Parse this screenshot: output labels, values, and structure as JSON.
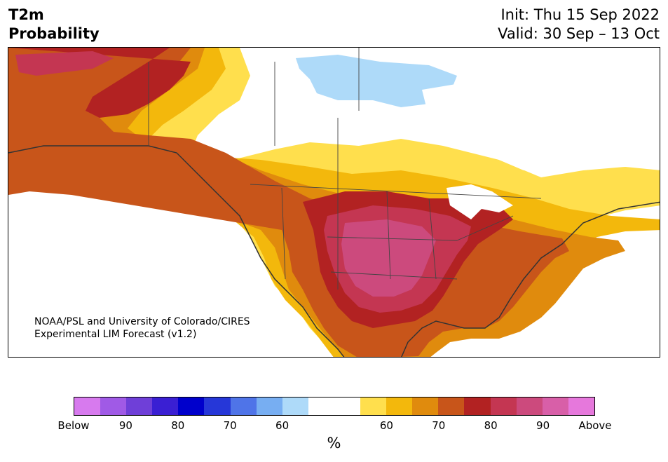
{
  "header": {
    "title_line1": "T2m",
    "title_line2": "Probability",
    "init": "Init: Thu 15 Sep 2022",
    "valid": "Valid: 30 Sep – 13 Oct"
  },
  "credit": {
    "line1": "NOAA/PSL and University of Colorado/CIRES",
    "line2": "Experimental LIM Forecast (v1.2)"
  },
  "legend": {
    "colors": [
      "#d77aee",
      "#a05ae6",
      "#6f3fd8",
      "#3a1fd3",
      "#0000cc",
      "#2637d8",
      "#4f74e8",
      "#77aef2",
      "#aedaf9",
      "#ffffff",
      "#ffffff",
      "#ffdf4d",
      "#f3b80c",
      "#e08b0d",
      "#c8551a",
      "#b22222",
      "#c43652",
      "#cc4a7d",
      "#d85fa8",
      "#e678dc"
    ],
    "ticks": [
      {
        "label": "Below",
        "index": 0
      },
      {
        "label": "90",
        "index": 2
      },
      {
        "label": "80",
        "index": 4
      },
      {
        "label": "70",
        "index": 6
      },
      {
        "label": "60",
        "index": 8
      },
      {
        "label": "60",
        "index": 12
      },
      {
        "label": "70",
        "index": 14
      },
      {
        "label": "80",
        "index": 16
      },
      {
        "label": "90",
        "index": 18
      },
      {
        "label": "Above",
        "index": 20
      }
    ],
    "unit": "%"
  }
}
